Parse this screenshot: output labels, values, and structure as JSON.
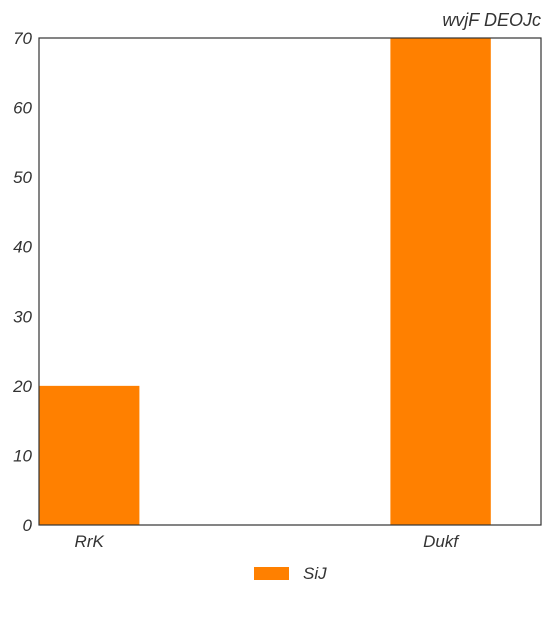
{
  "chart_data": {
    "type": "bar",
    "title": "wvjF DEOJc",
    "xlabel": "",
    "ylabel": "",
    "categories": [
      "RrK",
      "Dukf"
    ],
    "series": [
      {
        "name": "SiJ",
        "values": [
          20,
          70
        ],
        "color": "#ff8000"
      }
    ],
    "ylim": [
      0,
      70
    ],
    "yticks": [
      0,
      10,
      20,
      30,
      40,
      50,
      60,
      70
    ],
    "grid": false,
    "legend": "bottom-center"
  }
}
